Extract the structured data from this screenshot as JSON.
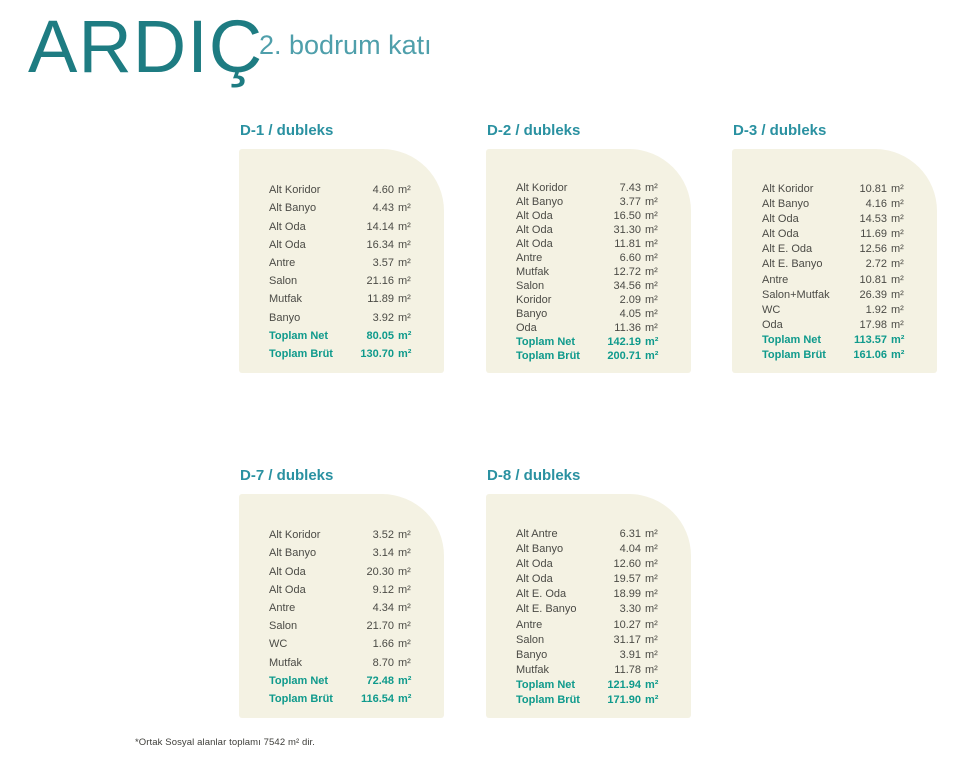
{
  "header": {
    "logo": "ARDIÇ",
    "subtitle": "2. bodrum katı"
  },
  "cards": [
    {
      "id": "D-1",
      "title": "D-1 / dubleks",
      "rows": [
        {
          "label": "Alt Koridor",
          "value": "4.60",
          "unit": "m²",
          "total": false
        },
        {
          "label": "Alt Banyo",
          "value": "4.43",
          "unit": "m²",
          "total": false
        },
        {
          "label": "Alt Oda",
          "value": "14.14",
          "unit": "m²",
          "total": false
        },
        {
          "label": "Alt Oda",
          "value": "16.34",
          "unit": "m²",
          "total": false
        },
        {
          "label": "Antre",
          "value": "3.57",
          "unit": "m²",
          "total": false
        },
        {
          "label": "Salon",
          "value": "21.16",
          "unit": "m²",
          "total": false
        },
        {
          "label": "Mutfak",
          "value": "11.89",
          "unit": "m²",
          "total": false
        },
        {
          "label": "Banyo",
          "value": "3.92",
          "unit": "m²",
          "total": false
        },
        {
          "label": "Toplam Net",
          "value": "80.05",
          "unit": "m²",
          "total": true
        },
        {
          "label": "Toplam Brüt",
          "value": "130.70",
          "unit": "m²",
          "total": true
        }
      ]
    },
    {
      "id": "D-2",
      "title": "D-2 / dubleks",
      "rows": [
        {
          "label": "Alt Koridor",
          "value": "7.43",
          "unit": "m²",
          "total": false
        },
        {
          "label": "Alt Banyo",
          "value": "3.77",
          "unit": "m²",
          "total": false
        },
        {
          "label": "Alt Oda",
          "value": "16.50",
          "unit": "m²",
          "total": false
        },
        {
          "label": "Alt Oda",
          "value": "31.30",
          "unit": "m²",
          "total": false
        },
        {
          "label": "Alt Oda",
          "value": "11.81",
          "unit": "m²",
          "total": false
        },
        {
          "label": "Antre",
          "value": "6.60",
          "unit": "m²",
          "total": false
        },
        {
          "label": "Mutfak",
          "value": "12.72",
          "unit": "m²",
          "total": false
        },
        {
          "label": "Salon",
          "value": "34.56",
          "unit": "m²",
          "total": false
        },
        {
          "label": "Koridor",
          "value": "2.09",
          "unit": "m²",
          "total": false
        },
        {
          "label": "Banyo",
          "value": "4.05",
          "unit": "m²",
          "total": false
        },
        {
          "label": "Oda",
          "value": "11.36",
          "unit": "m²",
          "total": false
        },
        {
          "label": "Toplam Net",
          "value": "142.19",
          "unit": "m²",
          "total": true
        },
        {
          "label": "Toplam Brüt",
          "value": "200.71",
          "unit": "m²",
          "total": true
        }
      ]
    },
    {
      "id": "D-3",
      "title": "D-3 / dubleks",
      "rows": [
        {
          "label": "Alt Koridor",
          "value": "10.81",
          "unit": "m²",
          "total": false
        },
        {
          "label": "Alt Banyo",
          "value": "4.16",
          "unit": "m²",
          "total": false
        },
        {
          "label": "Alt Oda",
          "value": "14.53",
          "unit": "m²",
          "total": false
        },
        {
          "label": "Alt Oda",
          "value": "11.69",
          "unit": "m²",
          "total": false
        },
        {
          "label": "Alt E. Oda",
          "value": "12.56",
          "unit": "m²",
          "total": false
        },
        {
          "label": "Alt E. Banyo",
          "value": "2.72",
          "unit": "m²",
          "total": false
        },
        {
          "label": "Antre",
          "value": "10.81",
          "unit": "m²",
          "total": false
        },
        {
          "label": "Salon+Mutfak",
          "value": "26.39",
          "unit": "m²",
          "total": false
        },
        {
          "label": "WC",
          "value": "1.92",
          "unit": "m²",
          "total": false
        },
        {
          "label": "Oda",
          "value": "17.98",
          "unit": "m²",
          "total": false
        },
        {
          "label": "Toplam Net",
          "value": "113.57",
          "unit": "m²",
          "total": true
        },
        {
          "label": "Toplam Brüt",
          "value": "161.06",
          "unit": "m²",
          "total": true
        }
      ]
    },
    {
      "id": "D-7",
      "title": "D-7 / dubleks",
      "rows": [
        {
          "label": "Alt Koridor",
          "value": "3.52",
          "unit": "m²",
          "total": false
        },
        {
          "label": "Alt Banyo",
          "value": "3.14",
          "unit": "m²",
          "total": false
        },
        {
          "label": "Alt Oda",
          "value": "20.30",
          "unit": "m²",
          "total": false
        },
        {
          "label": "Alt Oda",
          "value": "9.12",
          "unit": "m²",
          "total": false
        },
        {
          "label": "Antre",
          "value": "4.34",
          "unit": "m²",
          "total": false
        },
        {
          "label": "Salon",
          "value": "21.70",
          "unit": "m²",
          "total": false
        },
        {
          "label": "WC",
          "value": "1.66",
          "unit": "m²",
          "total": false
        },
        {
          "label": "Mutfak",
          "value": "8.70",
          "unit": "m²",
          "total": false
        },
        {
          "label": "Toplam Net",
          "value": "72.48",
          "unit": "m²",
          "total": true
        },
        {
          "label": "Toplam Brüt",
          "value": "116.54",
          "unit": "m²",
          "total": true
        }
      ]
    },
    {
      "id": "D-8",
      "title": "D-8 / dubleks",
      "rows": [
        {
          "label": "Alt Antre",
          "value": "6.31",
          "unit": "m²",
          "total": false
        },
        {
          "label": "Alt Banyo",
          "value": "4.04",
          "unit": "m²",
          "total": false
        },
        {
          "label": "Alt Oda",
          "value": "12.60",
          "unit": "m²",
          "total": false
        },
        {
          "label": "Alt Oda",
          "value": "19.57",
          "unit": "m²",
          "total": false
        },
        {
          "label": "Alt E. Oda",
          "value": "18.99",
          "unit": "m²",
          "total": false
        },
        {
          "label": "Alt E. Banyo",
          "value": "3.30",
          "unit": "m²",
          "total": false
        },
        {
          "label": "Antre",
          "value": "10.27",
          "unit": "m²",
          "total": false
        },
        {
          "label": "Salon",
          "value": "31.17",
          "unit": "m²",
          "total": false
        },
        {
          "label": "Banyo",
          "value": "3.91",
          "unit": "m²",
          "total": false
        },
        {
          "label": "Mutfak",
          "value": "11.78",
          "unit": "m²",
          "total": false
        },
        {
          "label": "Toplam Net",
          "value": "121.94",
          "unit": "m²",
          "total": true
        },
        {
          "label": "Toplam Brüt",
          "value": "171.90",
          "unit": "m²",
          "total": true
        }
      ]
    }
  ],
  "footnote": "*Ortak Sosyal alanlar toplamı 7542 m² dir.",
  "colors": {
    "logo_teal": "#1e7c82",
    "subtitle_teal": "#4f9fab",
    "accent_teal": "#2a91a1",
    "total_teal": "#0f9a8c",
    "card_bg": "#f4f2e3",
    "text_gray": "#4b4b46"
  }
}
